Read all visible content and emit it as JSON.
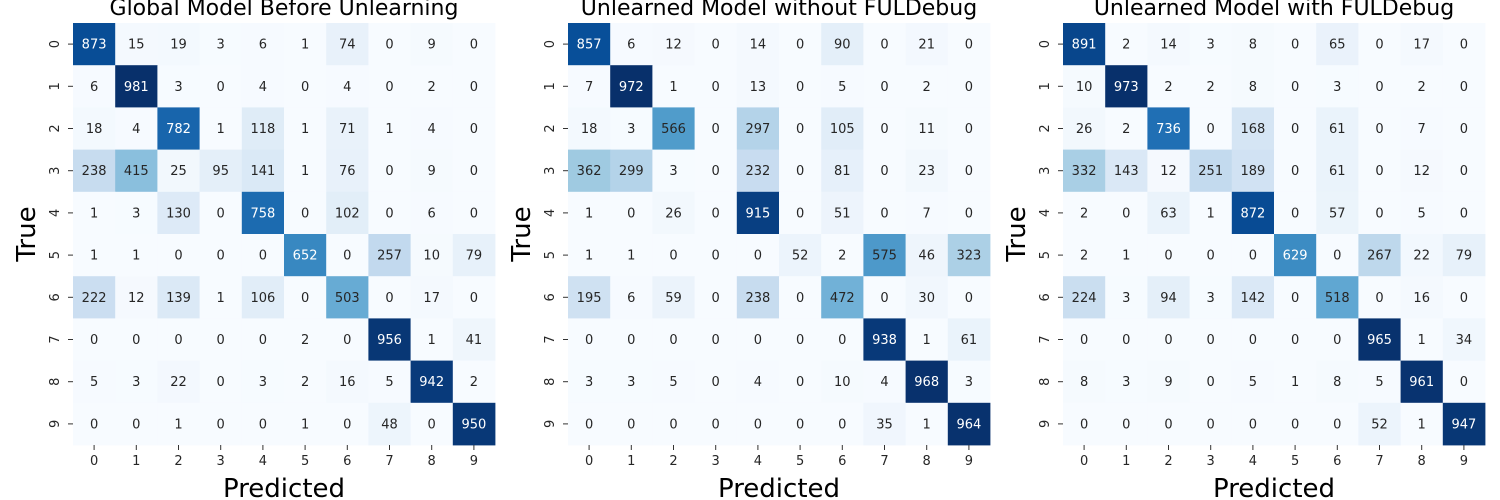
{
  "chart_data": [
    {
      "type": "heatmap",
      "title": "Global Model Before Unlearning",
      "xlabel": "Predicted",
      "ylabel": "True",
      "x_ticks": [
        "0",
        "1",
        "2",
        "3",
        "4",
        "5",
        "6",
        "7",
        "8",
        "9"
      ],
      "y_ticks": [
        "0",
        "1",
        "2",
        "3",
        "4",
        "5",
        "6",
        "7",
        "8",
        "9"
      ],
      "colormap": "Blues",
      "colorbar": false,
      "values": [
        [
          873,
          15,
          19,
          3,
          6,
          1,
          74,
          0,
          9,
          0
        ],
        [
          6,
          981,
          3,
          0,
          4,
          0,
          4,
          0,
          2,
          0
        ],
        [
          18,
          4,
          782,
          1,
          118,
          1,
          71,
          1,
          4,
          0
        ],
        [
          238,
          415,
          25,
          95,
          141,
          1,
          76,
          0,
          9,
          0
        ],
        [
          1,
          3,
          130,
          0,
          758,
          0,
          102,
          0,
          6,
          0
        ],
        [
          1,
          1,
          0,
          0,
          0,
          652,
          0,
          257,
          10,
          79
        ],
        [
          222,
          12,
          139,
          1,
          106,
          0,
          503,
          0,
          17,
          0
        ],
        [
          0,
          0,
          0,
          0,
          0,
          2,
          0,
          956,
          1,
          41
        ],
        [
          5,
          3,
          22,
          0,
          3,
          2,
          16,
          5,
          942,
          2
        ],
        [
          0,
          0,
          1,
          0,
          0,
          1,
          0,
          48,
          0,
          950
        ]
      ]
    },
    {
      "type": "heatmap",
      "title": "Unlearned Model without FULDebug",
      "xlabel": "Predicted",
      "ylabel": "True",
      "x_ticks": [
        "0",
        "1",
        "2",
        "3",
        "4",
        "5",
        "6",
        "7",
        "8",
        "9"
      ],
      "y_ticks": [
        "0",
        "1",
        "2",
        "3",
        "4",
        "5",
        "6",
        "7",
        "8",
        "9"
      ],
      "colormap": "Blues",
      "colorbar": false,
      "values": [
        [
          857,
          6,
          12,
          0,
          14,
          0,
          90,
          0,
          21,
          0
        ],
        [
          7,
          972,
          1,
          0,
          13,
          0,
          5,
          0,
          2,
          0
        ],
        [
          18,
          3,
          566,
          0,
          297,
          0,
          105,
          0,
          11,
          0
        ],
        [
          362,
          299,
          3,
          0,
          232,
          0,
          81,
          0,
          23,
          0
        ],
        [
          1,
          0,
          26,
          0,
          915,
          0,
          51,
          0,
          7,
          0
        ],
        [
          1,
          1,
          0,
          0,
          0,
          52,
          2,
          575,
          46,
          323
        ],
        [
          195,
          6,
          59,
          0,
          238,
          0,
          472,
          0,
          30,
          0
        ],
        [
          0,
          0,
          0,
          0,
          0,
          0,
          0,
          938,
          1,
          61
        ],
        [
          3,
          3,
          5,
          0,
          4,
          0,
          10,
          4,
          968,
          3
        ],
        [
          0,
          0,
          0,
          0,
          0,
          0,
          0,
          35,
          1,
          964
        ]
      ]
    },
    {
      "type": "heatmap",
      "title": "Unlearned Model with FULDebug",
      "xlabel": "Predicted",
      "ylabel": "True",
      "x_ticks": [
        "0",
        "1",
        "2",
        "3",
        "4",
        "5",
        "6",
        "7",
        "8",
        "9"
      ],
      "y_ticks": [
        "0",
        "1",
        "2",
        "3",
        "4",
        "5",
        "6",
        "7",
        "8",
        "9"
      ],
      "colormap": "Blues",
      "colorbar": false,
      "values": [
        [
          891,
          2,
          14,
          3,
          8,
          0,
          65,
          0,
          17,
          0
        ],
        [
          10,
          973,
          2,
          2,
          8,
          0,
          3,
          0,
          2,
          0
        ],
        [
          26,
          2,
          736,
          0,
          168,
          0,
          61,
          0,
          7,
          0
        ],
        [
          332,
          143,
          12,
          251,
          189,
          0,
          61,
          0,
          12,
          0
        ],
        [
          2,
          0,
          63,
          1,
          872,
          0,
          57,
          0,
          5,
          0
        ],
        [
          2,
          1,
          0,
          0,
          0,
          629,
          0,
          267,
          22,
          79
        ],
        [
          224,
          3,
          94,
          3,
          142,
          0,
          518,
          0,
          16,
          0
        ],
        [
          0,
          0,
          0,
          0,
          0,
          0,
          0,
          965,
          1,
          34
        ],
        [
          8,
          3,
          9,
          0,
          5,
          1,
          8,
          5,
          961,
          0
        ],
        [
          0,
          0,
          0,
          0,
          0,
          0,
          0,
          52,
          1,
          947
        ]
      ]
    }
  ]
}
